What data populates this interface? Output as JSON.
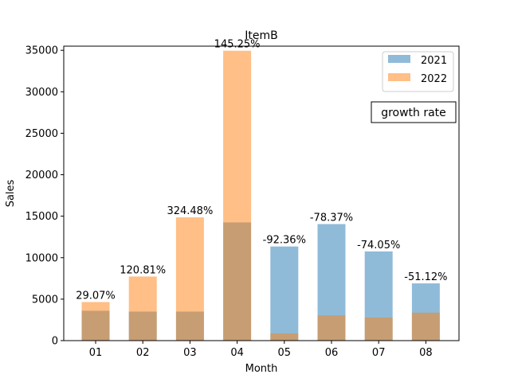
{
  "chart_data": {
    "type": "bar",
    "title": "ItemB",
    "xlabel": "Month",
    "ylabel": "Sales",
    "categories": [
      "01",
      "02",
      "03",
      "04",
      "05",
      "06",
      "07",
      "08"
    ],
    "ylim": [
      0,
      35500
    ],
    "yticks": [
      0,
      5000,
      10000,
      15000,
      20000,
      25000,
      30000,
      35000
    ],
    "series": [
      {
        "name": "2021",
        "color": "#1f77b4",
        "values": [
          3600,
          3500,
          3500,
          14250,
          11350,
          14050,
          10750,
          6900
        ]
      },
      {
        "name": "2022",
        "color": "#ff7f0e",
        "values": [
          4650,
          7730,
          14860,
          34950,
          870,
          3040,
          2790,
          3370
        ]
      }
    ],
    "data_labels": [
      "29.07%",
      "120.81%",
      "324.48%",
      "145.25%",
      "-92.36%",
      "-78.37%",
      "-74.05%",
      "-51.12%"
    ],
    "annotation": "growth rate",
    "legend_position": "top-right",
    "grid": false,
    "bar_alpha": 0.5
  }
}
